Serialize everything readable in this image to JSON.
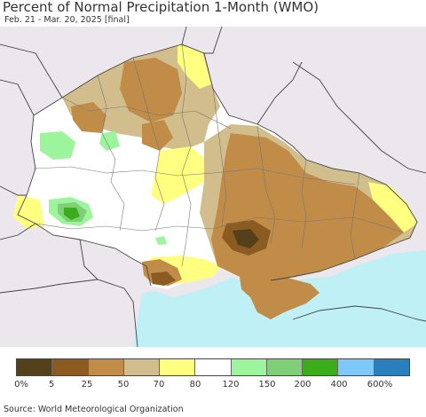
{
  "header": {
    "title": "Percent of Normal Precipitation 1-Month (WMO)",
    "subtitle": "Feb. 21 - Mar. 20, 2025 [final]"
  },
  "legend": {
    "labels": [
      "0%",
      "5",
      "25",
      "50",
      "70",
      "80",
      "120",
      "150",
      "200",
      "400",
      "600%"
    ],
    "colors": [
      "#55401c",
      "#8b5b22",
      "#c08c48",
      "#d2be8c",
      "#ffff80",
      "#ffffff",
      "#9cf59c",
      "#7fcf78",
      "#3bac1a",
      "#7fc8fa",
      "#2a7fbd"
    ]
  },
  "map": {
    "colors": {
      "background": "#ece7ec",
      "sea": "#bff0f6",
      "border": "#555555"
    }
  },
  "footer": {
    "source": "Source: World Meteorological Organization"
  }
}
